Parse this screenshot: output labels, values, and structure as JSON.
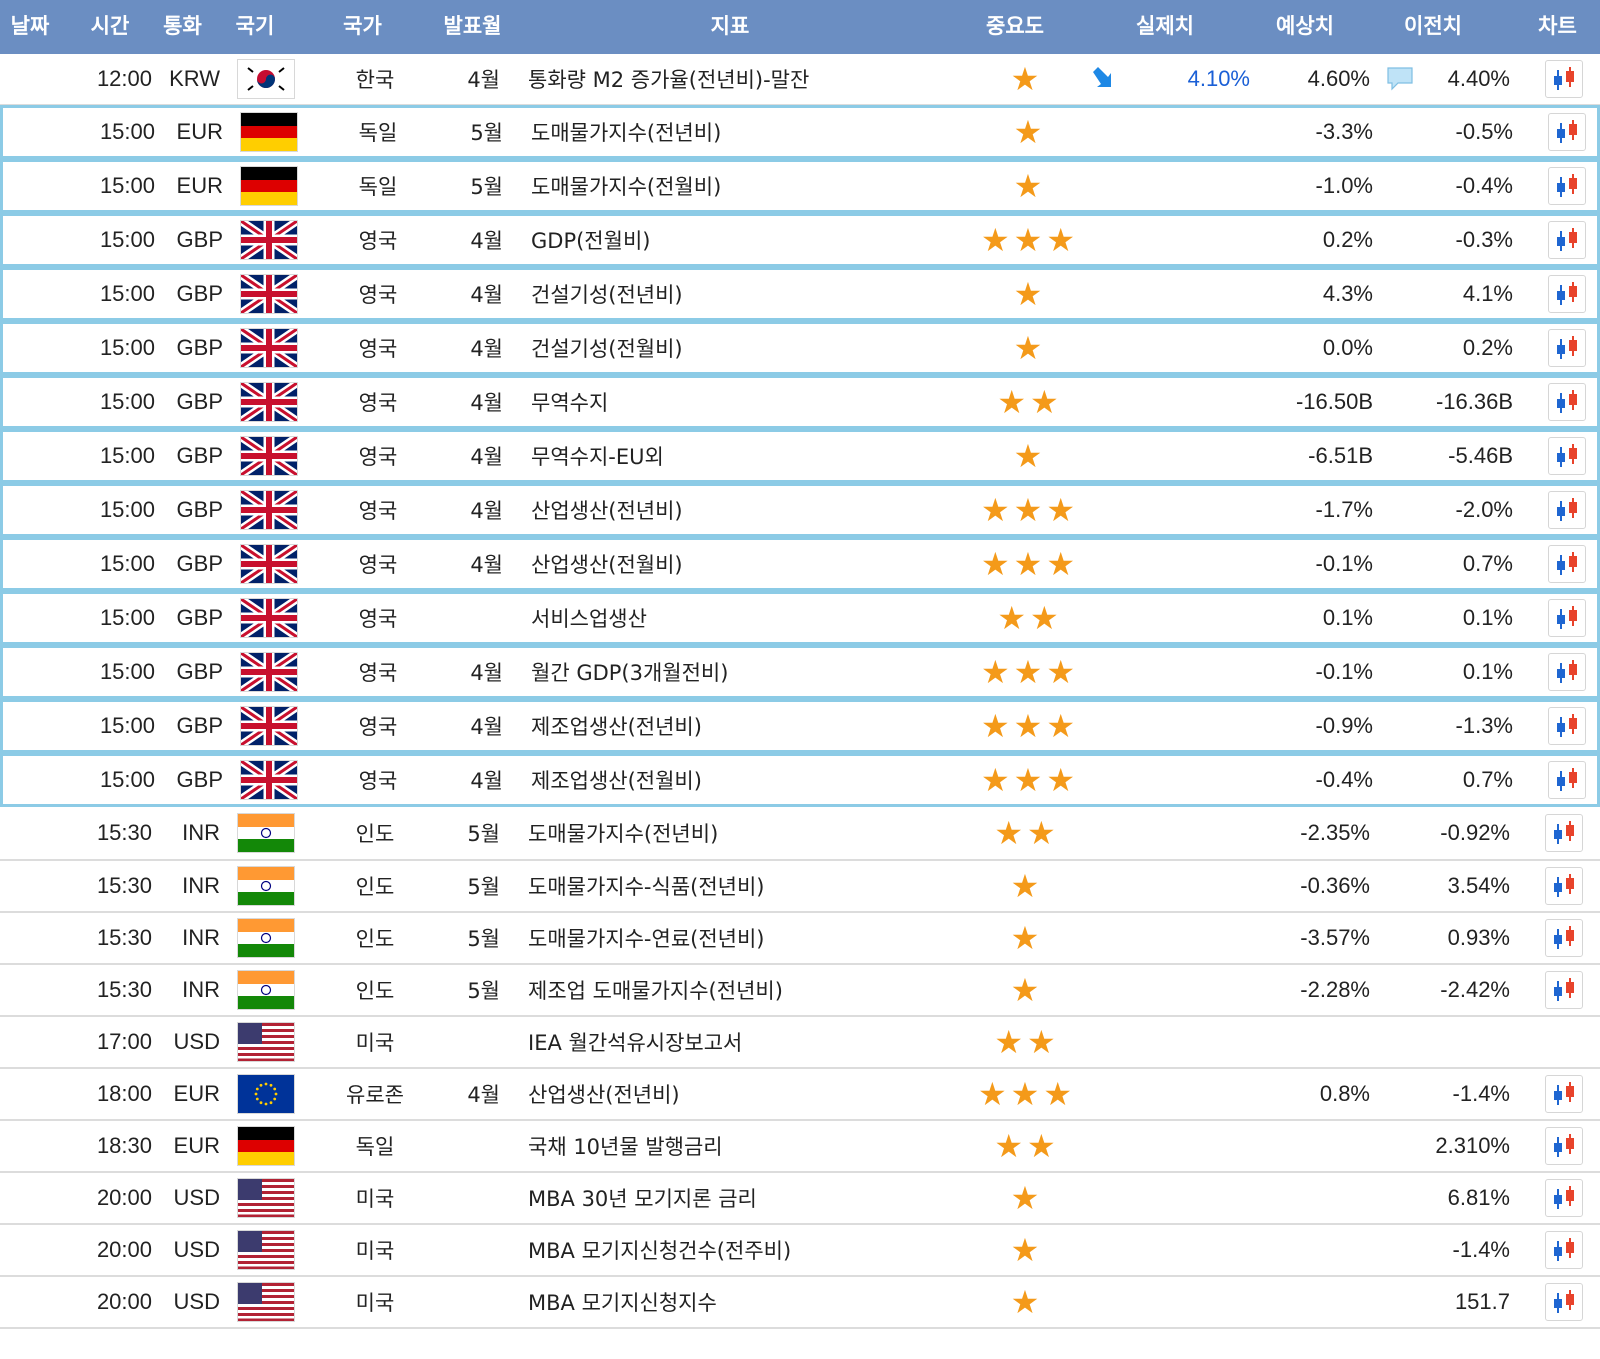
{
  "headers": {
    "date": "날짜",
    "time": "시간",
    "currency": "통화",
    "flag": "국기",
    "country": "국가",
    "release": "발표월",
    "indicator": "지표",
    "importance": "중요도",
    "actual": "실제치",
    "forecast": "예상치",
    "previous": "이전치",
    "chart": "차트"
  },
  "rows": [
    {
      "time": "12:00",
      "currency": "KRW",
      "flag": "kr-flag-icon",
      "country": "한국",
      "release": "4월",
      "indicator": "통화량 M2 증가율(전년비)-말잔",
      "stars": 1,
      "actual": "4.10%",
      "forecast": "4.60%",
      "previous": "4.40%",
      "chart": true
    },
    {
      "time": "15:00",
      "currency": "EUR",
      "flag": "de-flag-icon",
      "country": "독일",
      "release": "5월",
      "indicator": "도매물가지수(전년비)",
      "stars": 1,
      "actual": "",
      "forecast": "-3.3%",
      "previous": "-0.5%",
      "chart": true
    },
    {
      "time": "15:00",
      "currency": "EUR",
      "flag": "de-flag-icon",
      "country": "독일",
      "release": "5월",
      "indicator": "도매물가지수(전월비)",
      "stars": 1,
      "actual": "",
      "forecast": "-1.0%",
      "previous": "-0.4%",
      "chart": true
    },
    {
      "time": "15:00",
      "currency": "GBP",
      "flag": "uk-flag-icon",
      "country": "영국",
      "release": "4월",
      "indicator": "GDP(전월비)",
      "stars": 3,
      "actual": "",
      "forecast": "0.2%",
      "previous": "-0.3%",
      "chart": true
    },
    {
      "time": "15:00",
      "currency": "GBP",
      "flag": "uk-flag-icon",
      "country": "영국",
      "release": "4월",
      "indicator": "건설기성(전년비)",
      "stars": 1,
      "actual": "",
      "forecast": "4.3%",
      "previous": "4.1%",
      "chart": true
    },
    {
      "time": "15:00",
      "currency": "GBP",
      "flag": "uk-flag-icon",
      "country": "영국",
      "release": "4월",
      "indicator": "건설기성(전월비)",
      "stars": 1,
      "actual": "",
      "forecast": "0.0%",
      "previous": "0.2%",
      "chart": true
    },
    {
      "time": "15:00",
      "currency": "GBP",
      "flag": "uk-flag-icon",
      "country": "영국",
      "release": "4월",
      "indicator": "무역수지",
      "stars": 2,
      "actual": "",
      "forecast": "-16.50B",
      "previous": "-16.36B",
      "chart": true
    },
    {
      "time": "15:00",
      "currency": "GBP",
      "flag": "uk-flag-icon",
      "country": "영국",
      "release": "4월",
      "indicator": "무역수지-EU외",
      "stars": 1,
      "actual": "",
      "forecast": "-6.51B",
      "previous": "-5.46B",
      "chart": true
    },
    {
      "time": "15:00",
      "currency": "GBP",
      "flag": "uk-flag-icon",
      "country": "영국",
      "release": "4월",
      "indicator": "산업생산(전년비)",
      "stars": 3,
      "actual": "",
      "forecast": "-1.7%",
      "previous": "-2.0%",
      "chart": true
    },
    {
      "time": "15:00",
      "currency": "GBP",
      "flag": "uk-flag-icon",
      "country": "영국",
      "release": "4월",
      "indicator": "산업생산(전월비)",
      "stars": 3,
      "actual": "",
      "forecast": "-0.1%",
      "previous": "0.7%",
      "chart": true
    },
    {
      "time": "15:00",
      "currency": "GBP",
      "flag": "uk-flag-icon",
      "country": "영국",
      "release": "",
      "indicator": "서비스업생산",
      "stars": 2,
      "actual": "",
      "forecast": "0.1%",
      "previous": "0.1%",
      "chart": true
    },
    {
      "time": "15:00",
      "currency": "GBP",
      "flag": "uk-flag-icon",
      "country": "영국",
      "release": "4월",
      "indicator": "월간 GDP(3개월전비)",
      "stars": 3,
      "actual": "",
      "forecast": "-0.1%",
      "previous": "0.1%",
      "chart": true
    },
    {
      "time": "15:00",
      "currency": "GBP",
      "flag": "uk-flag-icon",
      "country": "영국",
      "release": "4월",
      "indicator": "제조업생산(전년비)",
      "stars": 3,
      "actual": "",
      "forecast": "-0.9%",
      "previous": "-1.3%",
      "chart": true
    },
    {
      "time": "15:00",
      "currency": "GBP",
      "flag": "uk-flag-icon",
      "country": "영국",
      "release": "4월",
      "indicator": "제조업생산(전월비)",
      "stars": 3,
      "actual": "",
      "forecast": "-0.4%",
      "previous": "0.7%",
      "chart": true
    },
    {
      "time": "15:30",
      "currency": "INR",
      "flag": "in-flag-icon",
      "country": "인도",
      "release": "5월",
      "indicator": "도매물가지수(전년비)",
      "stars": 2,
      "actual": "",
      "forecast": "-2.35%",
      "previous": "-0.92%",
      "chart": true
    },
    {
      "time": "15:30",
      "currency": "INR",
      "flag": "in-flag-icon",
      "country": "인도",
      "release": "5월",
      "indicator": "도매물가지수-식품(전년비)",
      "stars": 1,
      "actual": "",
      "forecast": "-0.36%",
      "previous": "3.54%",
      "chart": true
    },
    {
      "time": "15:30",
      "currency": "INR",
      "flag": "in-flag-icon",
      "country": "인도",
      "release": "5월",
      "indicator": "도매물가지수-연료(전년비)",
      "stars": 1,
      "actual": "",
      "forecast": "-3.57%",
      "previous": "0.93%",
      "chart": true
    },
    {
      "time": "15:30",
      "currency": "INR",
      "flag": "in-flag-icon",
      "country": "인도",
      "release": "5월",
      "indicator": "제조업 도매물가지수(전년비)",
      "stars": 1,
      "actual": "",
      "forecast": "-2.28%",
      "previous": "-2.42%",
      "chart": true
    },
    {
      "time": "17:00",
      "currency": "USD",
      "flag": "us-flag-icon",
      "country": "미국",
      "release": "",
      "indicator": "IEA 월간석유시장보고서",
      "stars": 2,
      "actual": "",
      "forecast": "",
      "previous": "",
      "chart": false
    },
    {
      "time": "18:00",
      "currency": "EUR",
      "flag": "eu-flag-icon",
      "country": "유로존",
      "release": "4월",
      "indicator": "산업생산(전년비)",
      "stars": 3,
      "actual": "",
      "forecast": "0.8%",
      "previous": "-1.4%",
      "chart": true
    },
    {
      "time": "18:30",
      "currency": "EUR",
      "flag": "de-flag-icon",
      "country": "독일",
      "release": "",
      "indicator": "국채 10년물 발행금리",
      "stars": 2,
      "actual": "",
      "forecast": "",
      "previous": "2.310%",
      "chart": true
    },
    {
      "time": "20:00",
      "currency": "USD",
      "flag": "us-flag-icon",
      "country": "미국",
      "release": "",
      "indicator": "MBA 30년 모기지론 금리",
      "stars": 1,
      "actual": "",
      "forecast": "",
      "previous": "6.81%",
      "chart": true
    },
    {
      "time": "20:00",
      "currency": "USD",
      "flag": "us-flag-icon",
      "country": "미국",
      "release": "",
      "indicator": "MBA 모기지신청건수(전주비)",
      "stars": 1,
      "actual": "",
      "forecast": "",
      "previous": "-1.4%",
      "chart": true
    },
    {
      "time": "20:00",
      "currency": "USD",
      "flag": "us-flag-icon",
      "country": "미국",
      "release": "",
      "indicator": "MBA 모기지신청지수",
      "stars": 1,
      "actual": "",
      "forecast": "",
      "previous": "151.7",
      "chart": true
    }
  ],
  "first_row_extras": {
    "actual_trend_icon": "down-arrow-icon",
    "comment_icon": "speech-bubble-icon"
  },
  "colors": {
    "header_bg": "#6b8ec2",
    "highlight_border": "#8ccbe6",
    "star": "#f49a1a",
    "actual_text": "#1a5fd6"
  }
}
